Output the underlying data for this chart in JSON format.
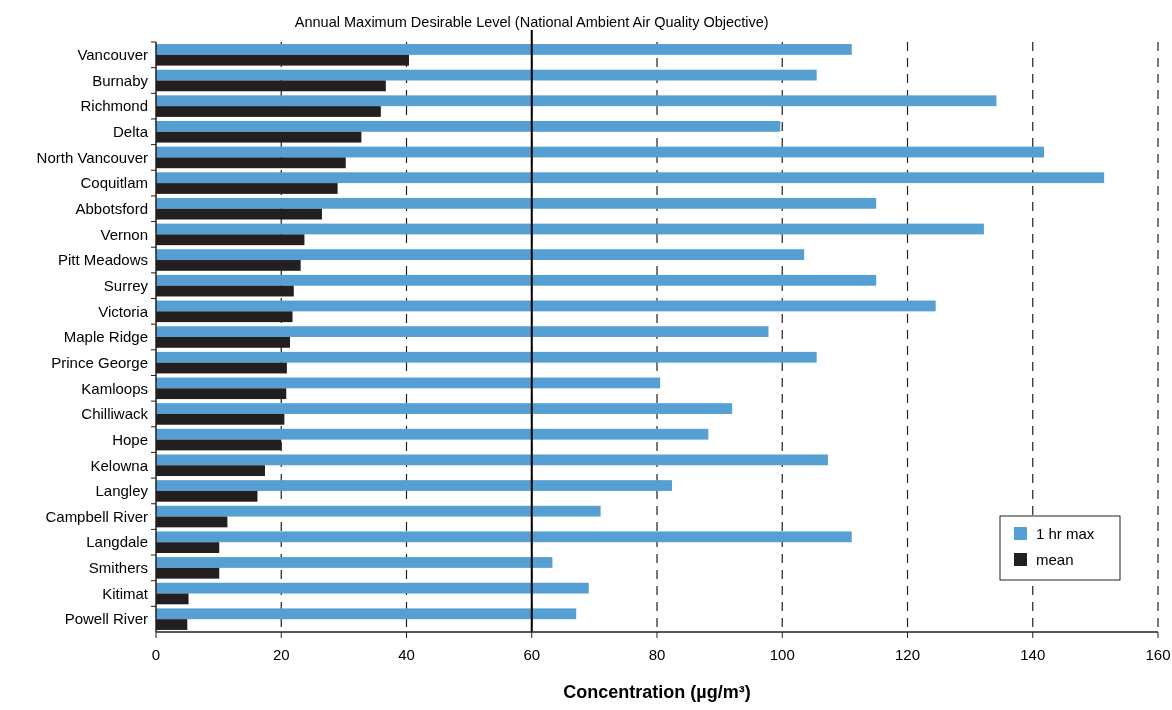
{
  "chart_data": {
    "type": "bar",
    "orientation": "horizontal",
    "xlabel": "Concentration (µg/m³)",
    "categories": [
      "Vancouver",
      "Burnaby",
      "Richmond",
      "Delta",
      "North Vancouver",
      "Coquitlam",
      "Abbotsford",
      "Vernon",
      "Pitt Meadows",
      "Surrey",
      "Victoria",
      "Maple Ridge",
      "Prince George",
      "Kamloops",
      "Chilliwack",
      "Hope",
      "Kelowna",
      "Langley",
      "Campbell River",
      "Langdale",
      "Smithers",
      "Kitimat",
      "Powell River"
    ],
    "series": [
      {
        "name": "1 hr max",
        "color": "#559fd3",
        "values": [
          111.1,
          105.5,
          134.2,
          99.7,
          141.8,
          151.4,
          115.0,
          132.2,
          103.5,
          115.0,
          124.5,
          97.8,
          105.5,
          80.5,
          92.0,
          88.2,
          107.3,
          82.4,
          71.0,
          111.1,
          63.3,
          69.1,
          67.1
        ]
      },
      {
        "name": "mean",
        "color": "#231f20",
        "values": [
          40.4,
          36.7,
          35.9,
          32.8,
          30.3,
          29.0,
          26.5,
          23.7,
          23.1,
          22.0,
          21.8,
          21.4,
          20.9,
          20.8,
          20.5,
          20.0,
          17.4,
          16.2,
          11.4,
          10.1,
          10.1,
          5.2,
          5.0
        ]
      }
    ],
    "xlim": [
      0,
      160
    ],
    "xticks": [
      0,
      20,
      40,
      60,
      80,
      100,
      120,
      140,
      160
    ],
    "grid": "x",
    "legend": "bottom right",
    "ref_lines": [
      {
        "axis": "x",
        "value": 60,
        "label": "Annual Maximum Desirable Level (National Ambient Air Quality Objective)",
        "color": "#000000"
      }
    ]
  }
}
